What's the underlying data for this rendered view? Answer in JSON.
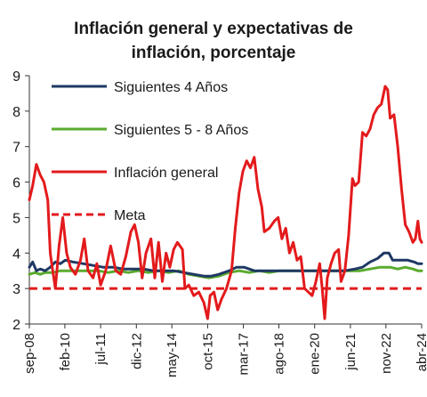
{
  "chart_data": {
    "type": "line",
    "title": "Inflación general y expectativas de inflación, porcentaje",
    "title_lines": [
      "Inflación general y expectativas de",
      "inflación, porcentaje"
    ],
    "xlabel": "",
    "ylabel": "",
    "ylim": [
      2,
      9
    ],
    "y_ticks": [
      2,
      3,
      4,
      5,
      6,
      7,
      8,
      9
    ],
    "x_range": [
      2008.67,
      2024.25
    ],
    "x_tick_labels": [
      {
        "label": "sep-08",
        "x": 2008.67
      },
      {
        "label": "feb-10",
        "x": 2010.08
      },
      {
        "label": "jul-11",
        "x": 2011.5
      },
      {
        "label": "dic-12",
        "x": 2012.92
      },
      {
        "label": "may-14",
        "x": 2014.33
      },
      {
        "label": "oct-15",
        "x": 2015.75
      },
      {
        "label": "mar-17",
        "x": 2017.17
      },
      {
        "label": "ago-18",
        "x": 2018.58
      },
      {
        "label": "ene-20",
        "x": 2020.0
      },
      {
        "label": "jun-21",
        "x": 2021.42
      },
      {
        "label": "nov-22",
        "x": 2022.83
      },
      {
        "label": "abr-24",
        "x": 2024.25
      }
    ],
    "grid": false,
    "legend_position": "top-left (inside plot)",
    "series": [
      {
        "name": "Siguientes 4 Años",
        "color": "#1f3864",
        "style": "solid",
        "points": [
          [
            2008.67,
            3.6
          ],
          [
            2008.8,
            3.75
          ],
          [
            2008.95,
            3.5
          ],
          [
            2009.1,
            3.55
          ],
          [
            2009.3,
            3.5
          ],
          [
            2009.5,
            3.6
          ],
          [
            2009.7,
            3.75
          ],
          [
            2009.9,
            3.7
          ],
          [
            2010.1,
            3.8
          ],
          [
            2010.4,
            3.75
          ],
          [
            2010.8,
            3.7
          ],
          [
            2011.2,
            3.65
          ],
          [
            2011.6,
            3.6
          ],
          [
            2012.0,
            3.6
          ],
          [
            2012.4,
            3.55
          ],
          [
            2012.8,
            3.55
          ],
          [
            2013.2,
            3.55
          ],
          [
            2013.6,
            3.5
          ],
          [
            2014.0,
            3.5
          ],
          [
            2014.4,
            3.5
          ],
          [
            2014.8,
            3.45
          ],
          [
            2015.2,
            3.4
          ],
          [
            2015.6,
            3.35
          ],
          [
            2015.9,
            3.35
          ],
          [
            2016.2,
            3.4
          ],
          [
            2016.6,
            3.5
          ],
          [
            2016.9,
            3.6
          ],
          [
            2017.2,
            3.6
          ],
          [
            2017.6,
            3.5
          ],
          [
            2018.0,
            3.5
          ],
          [
            2018.4,
            3.5
          ],
          [
            2018.8,
            3.5
          ],
          [
            2019.2,
            3.5
          ],
          [
            2019.6,
            3.5
          ],
          [
            2020.0,
            3.5
          ],
          [
            2020.4,
            3.5
          ],
          [
            2020.8,
            3.5
          ],
          [
            2021.2,
            3.5
          ],
          [
            2021.6,
            3.55
          ],
          [
            2021.9,
            3.6
          ],
          [
            2022.2,
            3.75
          ],
          [
            2022.5,
            3.85
          ],
          [
            2022.75,
            4.0
          ],
          [
            2022.95,
            4.0
          ],
          [
            2023.1,
            3.8
          ],
          [
            2023.4,
            3.8
          ],
          [
            2023.7,
            3.8
          ],
          [
            2023.95,
            3.75
          ],
          [
            2024.1,
            3.7
          ],
          [
            2024.25,
            3.7
          ]
        ]
      },
      {
        "name": "Siguientes 5 - 8 Años",
        "color": "#5aab2e",
        "style": "solid",
        "points": [
          [
            2008.67,
            3.4
          ],
          [
            2008.9,
            3.45
          ],
          [
            2009.1,
            3.4
          ],
          [
            2009.3,
            3.45
          ],
          [
            2009.6,
            3.45
          ],
          [
            2009.9,
            3.5
          ],
          [
            2010.2,
            3.5
          ],
          [
            2010.6,
            3.5
          ],
          [
            2011.0,
            3.5
          ],
          [
            2011.4,
            3.5
          ],
          [
            2011.8,
            3.45
          ],
          [
            2012.2,
            3.5
          ],
          [
            2012.6,
            3.45
          ],
          [
            2013.0,
            3.5
          ],
          [
            2013.4,
            3.45
          ],
          [
            2013.8,
            3.5
          ],
          [
            2014.2,
            3.45
          ],
          [
            2014.6,
            3.5
          ],
          [
            2015.0,
            3.4
          ],
          [
            2015.4,
            3.35
          ],
          [
            2015.8,
            3.3
          ],
          [
            2016.2,
            3.35
          ],
          [
            2016.6,
            3.45
          ],
          [
            2017.0,
            3.5
          ],
          [
            2017.4,
            3.45
          ],
          [
            2017.8,
            3.5
          ],
          [
            2018.2,
            3.45
          ],
          [
            2018.6,
            3.5
          ],
          [
            2019.0,
            3.5
          ],
          [
            2019.4,
            3.5
          ],
          [
            2019.8,
            3.5
          ],
          [
            2020.2,
            3.5
          ],
          [
            2020.6,
            3.5
          ],
          [
            2021.0,
            3.5
          ],
          [
            2021.4,
            3.5
          ],
          [
            2021.8,
            3.5
          ],
          [
            2022.2,
            3.55
          ],
          [
            2022.6,
            3.6
          ],
          [
            2023.0,
            3.6
          ],
          [
            2023.3,
            3.55
          ],
          [
            2023.6,
            3.6
          ],
          [
            2023.9,
            3.55
          ],
          [
            2024.1,
            3.5
          ],
          [
            2024.25,
            3.5
          ]
        ]
      },
      {
        "name": "Inflación general",
        "color": "#e31a1c",
        "style": "solid",
        "points": [
          [
            2008.67,
            5.5
          ],
          [
            2008.8,
            5.9
          ],
          [
            2008.95,
            6.5
          ],
          [
            2009.1,
            6.2
          ],
          [
            2009.25,
            6.0
          ],
          [
            2009.4,
            5.5
          ],
          [
            2009.5,
            4.0
          ],
          [
            2009.6,
            3.5
          ],
          [
            2009.7,
            3.0
          ],
          [
            2009.85,
            4.2
          ],
          [
            2010.0,
            5.0
          ],
          [
            2010.15,
            4.0
          ],
          [
            2010.3,
            3.6
          ],
          [
            2010.5,
            3.4
          ],
          [
            2010.7,
            3.8
          ],
          [
            2010.85,
            4.4
          ],
          [
            2011.0,
            3.5
          ],
          [
            2011.2,
            3.3
          ],
          [
            2011.35,
            3.7
          ],
          [
            2011.5,
            3.1
          ],
          [
            2011.7,
            3.5
          ],
          [
            2011.9,
            4.2
          ],
          [
            2012.1,
            3.5
          ],
          [
            2012.3,
            3.4
          ],
          [
            2012.5,
            3.9
          ],
          [
            2012.7,
            4.6
          ],
          [
            2012.85,
            4.8
          ],
          [
            2013.0,
            4.3
          ],
          [
            2013.15,
            3.3
          ],
          [
            2013.3,
            4.0
          ],
          [
            2013.5,
            4.4
          ],
          [
            2013.65,
            3.3
          ],
          [
            2013.8,
            4.3
          ],
          [
            2013.95,
            3.2
          ],
          [
            2014.1,
            4.0
          ],
          [
            2014.25,
            3.6
          ],
          [
            2014.4,
            4.1
          ],
          [
            2014.55,
            4.3
          ],
          [
            2014.75,
            4.1
          ],
          [
            2014.85,
            3.0
          ],
          [
            2015.0,
            3.1
          ],
          [
            2015.2,
            2.8
          ],
          [
            2015.4,
            2.9
          ],
          [
            2015.6,
            2.6
          ],
          [
            2015.75,
            2.15
          ],
          [
            2015.85,
            2.8
          ],
          [
            2016.0,
            2.9
          ],
          [
            2016.15,
            2.4
          ],
          [
            2016.3,
            2.7
          ],
          [
            2016.5,
            3.0
          ],
          [
            2016.7,
            3.5
          ],
          [
            2016.85,
            4.7
          ],
          [
            2017.0,
            5.7
          ],
          [
            2017.15,
            6.3
          ],
          [
            2017.3,
            6.6
          ],
          [
            2017.45,
            6.4
          ],
          [
            2017.6,
            6.7
          ],
          [
            2017.75,
            5.8
          ],
          [
            2017.9,
            5.3
          ],
          [
            2018.0,
            4.6
          ],
          [
            2018.2,
            4.7
          ],
          [
            2018.4,
            4.9
          ],
          [
            2018.55,
            5.0
          ],
          [
            2018.7,
            4.4
          ],
          [
            2018.85,
            4.7
          ],
          [
            2019.0,
            4.0
          ],
          [
            2019.15,
            4.3
          ],
          [
            2019.3,
            3.8
          ],
          [
            2019.45,
            3.9
          ],
          [
            2019.6,
            3.0
          ],
          [
            2019.75,
            2.9
          ],
          [
            2019.9,
            2.8
          ],
          [
            2020.05,
            3.2
          ],
          [
            2020.2,
            3.7
          ],
          [
            2020.3,
            3.0
          ],
          [
            2020.4,
            2.15
          ],
          [
            2020.5,
            3.3
          ],
          [
            2020.65,
            3.7
          ],
          [
            2020.8,
            4.0
          ],
          [
            2020.95,
            4.1
          ],
          [
            2021.05,
            3.2
          ],
          [
            2021.2,
            3.5
          ],
          [
            2021.35,
            4.5
          ],
          [
            2021.5,
            6.1
          ],
          [
            2021.6,
            5.9
          ],
          [
            2021.75,
            6.0
          ],
          [
            2021.9,
            7.4
          ],
          [
            2022.05,
            7.3
          ],
          [
            2022.2,
            7.5
          ],
          [
            2022.35,
            7.9
          ],
          [
            2022.5,
            8.1
          ],
          [
            2022.65,
            8.2
          ],
          [
            2022.8,
            8.7
          ],
          [
            2022.9,
            8.6
          ],
          [
            2023.0,
            7.8
          ],
          [
            2023.15,
            7.9
          ],
          [
            2023.3,
            7.0
          ],
          [
            2023.45,
            5.8
          ],
          [
            2023.6,
            4.8
          ],
          [
            2023.75,
            4.6
          ],
          [
            2023.9,
            4.3
          ],
          [
            2024.0,
            4.4
          ],
          [
            2024.1,
            4.9
          ],
          [
            2024.18,
            4.4
          ],
          [
            2024.25,
            4.3
          ]
        ]
      },
      {
        "name": "Meta",
        "color": "#e31a1c",
        "style": "dashed",
        "points": [
          [
            2008.67,
            3.0
          ],
          [
            2024.25,
            3.0
          ]
        ]
      }
    ]
  }
}
